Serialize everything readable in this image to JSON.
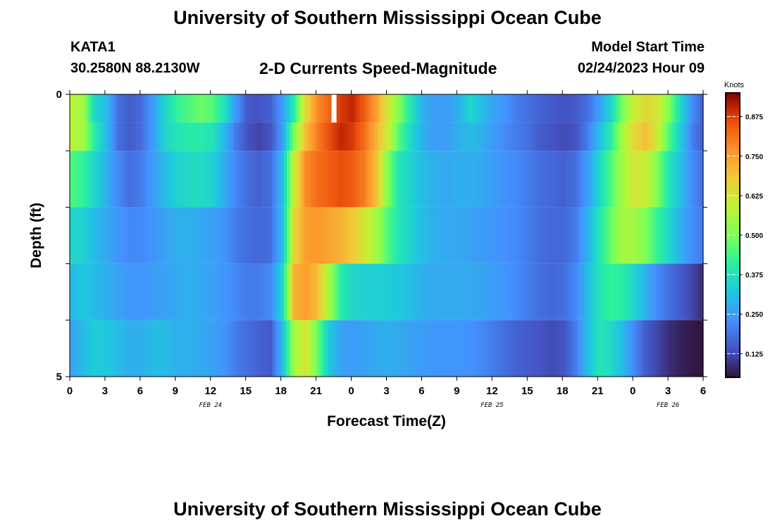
{
  "header": {
    "title": "University of Southern Mississippi Ocean Cube",
    "station": "KATA1",
    "coords": "30.2580N  88.2130W",
    "subtitle": "2-D Currents Speed-Magnitude",
    "start_label": "Model Start Time",
    "start_value": "02/24/2023 Hour 09"
  },
  "footer": {
    "title": "University of Southern Mississippi Ocean Cube"
  },
  "chart_data": {
    "type": "heatmap",
    "title": "2-D Currents Speed-Magnitude",
    "xlabel": "Forecast Time(Z)",
    "ylabel": "Depth (ft)",
    "x_ticks": [
      "0",
      "3",
      "6",
      "9",
      "12",
      "15",
      "18",
      "21",
      "0",
      "3",
      "6",
      "9",
      "12",
      "15",
      "18",
      "21",
      "0",
      "3",
      "6"
    ],
    "date_labels": [
      {
        "text": "FEB 24",
        "at_hour": 12
      },
      {
        "text": "FEB 25",
        "at_hour": 36
      },
      {
        "text": "FEB 26",
        "at_hour": 51
      }
    ],
    "y_ticks": [
      "0",
      "5"
    ],
    "x_range_hours": [
      0,
      54
    ],
    "depth_range_ft": [
      0,
      5
    ],
    "colorbar": {
      "label": "Knots",
      "range": [
        0.05,
        0.95
      ],
      "ticks": [
        "0.875",
        "0.750",
        "0.625",
        "0.500",
        "0.375",
        "0.250",
        "0.125"
      ],
      "tick_values": [
        0.875,
        0.75,
        0.625,
        0.5,
        0.375,
        0.25,
        0.125
      ]
    },
    "missing": {
      "hour": 22.5,
      "layer": 0
    },
    "layers": [
      {
        "depth_ft": 0.25,
        "knots": [
          0.58,
          0.55,
          0.35,
          0.3,
          0.18,
          0.15,
          0.18,
          0.25,
          0.35,
          0.42,
          0.45,
          0.48,
          0.46,
          0.38,
          0.25,
          0.15,
          0.14,
          0.16,
          0.25,
          0.4,
          0.65,
          0.78,
          0.83,
          0.88,
          0.9,
          0.84,
          0.75,
          0.62,
          0.5,
          0.38,
          0.28,
          0.25,
          0.25,
          0.28,
          0.35,
          0.3,
          0.26,
          0.24,
          0.2,
          0.18,
          0.16,
          0.15,
          0.14,
          0.15,
          0.18,
          0.25,
          0.35,
          0.5,
          0.6,
          0.65,
          0.62,
          0.5,
          0.35,
          0.22,
          0.15
        ]
      },
      {
        "depth_ft": 0.75,
        "knots": [
          0.58,
          0.55,
          0.4,
          0.3,
          0.18,
          0.15,
          0.18,
          0.25,
          0.35,
          0.38,
          0.4,
          0.4,
          0.38,
          0.3,
          0.2,
          0.14,
          0.12,
          0.14,
          0.25,
          0.5,
          0.7,
          0.8,
          0.86,
          0.9,
          0.88,
          0.82,
          0.72,
          0.6,
          0.45,
          0.35,
          0.28,
          0.25,
          0.25,
          0.28,
          0.3,
          0.28,
          0.25,
          0.22,
          0.2,
          0.18,
          0.15,
          0.14,
          0.13,
          0.14,
          0.2,
          0.3,
          0.4,
          0.55,
          0.65,
          0.7,
          0.6,
          0.45,
          0.32,
          0.2,
          0.15
        ]
      },
      {
        "depth_ft": 1.5,
        "knots": [
          0.45,
          0.42,
          0.35,
          0.28,
          0.22,
          0.18,
          0.2,
          0.25,
          0.3,
          0.34,
          0.36,
          0.36,
          0.34,
          0.28,
          0.22,
          0.18,
          0.16,
          0.18,
          0.3,
          0.6,
          0.78,
          0.82,
          0.84,
          0.86,
          0.84,
          0.8,
          0.7,
          0.5,
          0.38,
          0.34,
          0.3,
          0.28,
          0.27,
          0.28,
          0.28,
          0.27,
          0.25,
          0.23,
          0.22,
          0.2,
          0.18,
          0.17,
          0.16,
          0.18,
          0.25,
          0.35,
          0.45,
          0.55,
          0.62,
          0.6,
          0.5,
          0.38,
          0.3,
          0.22,
          0.18
        ]
      },
      {
        "depth_ft": 2.5,
        "knots": [
          0.35,
          0.34,
          0.3,
          0.27,
          0.24,
          0.22,
          0.22,
          0.24,
          0.26,
          0.28,
          0.28,
          0.27,
          0.26,
          0.24,
          0.2,
          0.18,
          0.17,
          0.18,
          0.3,
          0.65,
          0.75,
          0.76,
          0.74,
          0.72,
          0.68,
          0.62,
          0.55,
          0.45,
          0.38,
          0.34,
          0.3,
          0.28,
          0.27,
          0.27,
          0.26,
          0.25,
          0.24,
          0.23,
          0.22,
          0.2,
          0.18,
          0.17,
          0.17,
          0.2,
          0.28,
          0.38,
          0.48,
          0.55,
          0.55,
          0.5,
          0.42,
          0.35,
          0.28,
          0.22,
          0.2
        ]
      },
      {
        "depth_ft": 3.5,
        "knots": [
          0.3,
          0.32,
          0.3,
          0.28,
          0.26,
          0.24,
          0.24,
          0.25,
          0.26,
          0.27,
          0.28,
          0.27,
          0.26,
          0.24,
          0.22,
          0.2,
          0.2,
          0.22,
          0.35,
          0.72,
          0.75,
          0.7,
          0.55,
          0.4,
          0.35,
          0.34,
          0.34,
          0.33,
          0.32,
          0.3,
          0.28,
          0.27,
          0.27,
          0.27,
          0.27,
          0.26,
          0.25,
          0.24,
          0.22,
          0.2,
          0.18,
          0.17,
          0.18,
          0.22,
          0.3,
          0.38,
          0.42,
          0.4,
          0.35,
          0.28,
          0.22,
          0.18,
          0.15,
          0.12,
          0.08
        ]
      },
      {
        "depth_ft": 4.5,
        "knots": [
          0.26,
          0.3,
          0.33,
          0.32,
          0.3,
          0.28,
          0.28,
          0.3,
          0.3,
          0.28,
          0.28,
          0.27,
          0.26,
          0.24,
          0.2,
          0.18,
          0.16,
          0.15,
          0.3,
          0.55,
          0.62,
          0.48,
          0.32,
          0.26,
          0.25,
          0.26,
          0.27,
          0.28,
          0.27,
          0.26,
          0.25,
          0.24,
          0.24,
          0.24,
          0.23,
          0.22,
          0.2,
          0.18,
          0.16,
          0.15,
          0.14,
          0.13,
          0.14,
          0.2,
          0.3,
          0.38,
          0.36,
          0.3,
          0.22,
          0.15,
          0.12,
          0.09,
          0.07,
          0.06,
          0.05
        ]
      }
    ]
  }
}
